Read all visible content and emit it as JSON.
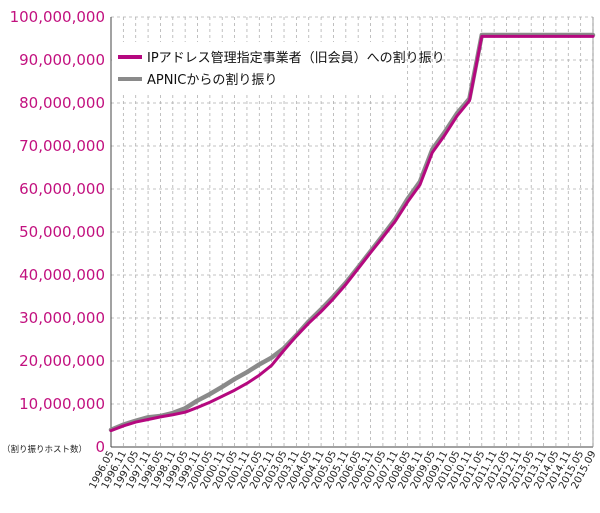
{
  "chart_data": {
    "type": "line",
    "title": "",
    "xlabel": "",
    "ylabel": "（割り振りホスト数）",
    "ylim": [
      0,
      100000000
    ],
    "yticks": [
      "0",
      "10,000,000",
      "20,000,000",
      "30,000,000",
      "40,000,000",
      "50,000,000",
      "60,000,000",
      "70,000,000",
      "80,000,000",
      "90,000,000",
      "100,000,000"
    ],
    "ytick_values": [
      0,
      10000000,
      20000000,
      30000000,
      40000000,
      50000000,
      60000000,
      70000000,
      80000000,
      90000000,
      100000000
    ],
    "categories": [
      "1996.05",
      "1996.11",
      "1997.05",
      "1997.11",
      "1998.05",
      "1998.11",
      "1999.05",
      "1999.11",
      "2000.05",
      "2000.11",
      "2001.05",
      "2001.11",
      "2002.05",
      "2002.11",
      "2003.05",
      "2003.11",
      "2004.05",
      "2004.11",
      "2005.05",
      "2005.11",
      "2006.05",
      "2006.11",
      "2007.05",
      "2007.11",
      "2008.05",
      "2008.11",
      "2009.05",
      "2009.11",
      "2010.05",
      "2010.11",
      "2011.05",
      "2011.11",
      "2012.05",
      "2012.11",
      "2013.05",
      "2013.11",
      "2014.05",
      "2014.11",
      "2015.05",
      "2015.09"
    ],
    "grid": true,
    "legend_position": "top-left",
    "series": [
      {
        "name": "IPアドレス管理指定事業者（旧会員）への割り振り",
        "color": "#b5087f",
        "values": [
          3800000,
          4900000,
          5800000,
          6400000,
          7000000,
          7500000,
          8100000,
          9200000,
          10400000,
          11800000,
          13200000,
          14800000,
          16700000,
          19000000,
          22500000,
          25800000,
          28800000,
          31500000,
          34500000,
          37800000,
          41500000,
          45200000,
          48800000,
          52500000,
          57000000,
          61000000,
          68500000,
          72500000,
          77000000,
          80500000,
          95500000,
          95500000,
          95500000,
          95500000,
          95500000,
          95500000,
          95500000,
          95500000,
          95500000,
          95500000
        ]
      },
      {
        "name": "APNICからの割り振り",
        "color": "#8a8a8a",
        "values": [
          4000000,
          5200000,
          6100000,
          6900000,
          7200000,
          7900000,
          9000000,
          10800000,
          12300000,
          14000000,
          15800000,
          17400000,
          19200000,
          20800000,
          23000000,
          26000000,
          29200000,
          32000000,
          35000000,
          38200000,
          41800000,
          45500000,
          49200000,
          53000000,
          57700000,
          61700000,
          69200000,
          73200000,
          77600000,
          81000000,
          95800000,
          95800000,
          95800000,
          95800000,
          95800000,
          95800000,
          95800000,
          95800000,
          95800000,
          95800000
        ]
      }
    ]
  }
}
